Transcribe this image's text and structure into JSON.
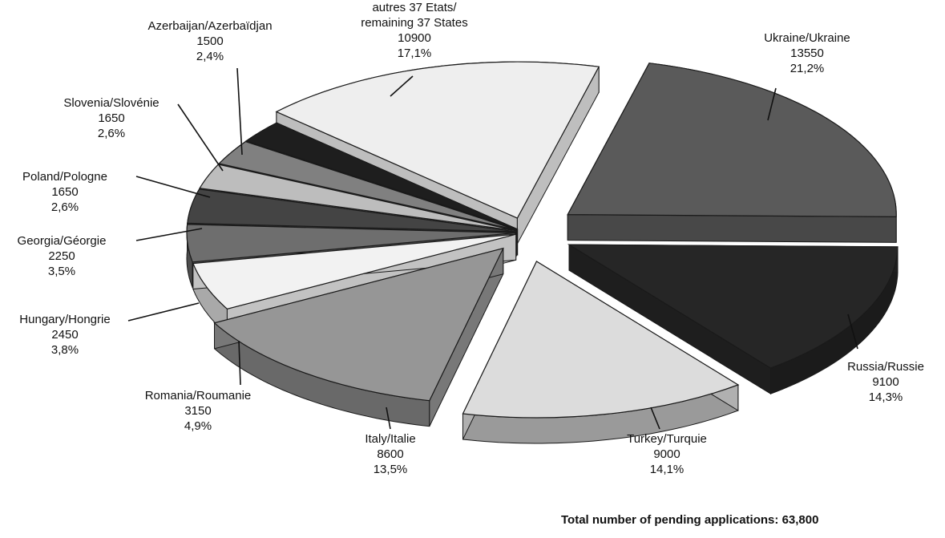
{
  "chart_data": {
    "type": "pie",
    "title": "",
    "legend": "none",
    "slices": [
      {
        "label": "Ukraine/Ukraine",
        "value": 13550,
        "percent": "21,2%",
        "color": "#5a5a5a"
      },
      {
        "label": "Russia/Russie",
        "value": 9100,
        "percent": "14,3%",
        "color": "#262626"
      },
      {
        "label": "Turkey/Turquie",
        "value": 9000,
        "percent": "14,1%",
        "color": "#dcdcdc"
      },
      {
        "label": "Italy/Italie",
        "value": 8600,
        "percent": "13,5%",
        "color": "#969696"
      },
      {
        "label": "Romania/Roumanie",
        "value": 3150,
        "percent": "4,9%",
        "color": "#f2f2f2"
      },
      {
        "label": "Hungary/Hongrie",
        "value": 2450,
        "percent": "3,8%",
        "color": "#6e6e6e"
      },
      {
        "label": "Georgia/Géorgie",
        "value": 2250,
        "percent": "3,5%",
        "color": "#444444"
      },
      {
        "label": "Poland/Pologne",
        "value": 1650,
        "percent": "2,6%",
        "color": "#bdbdbd"
      },
      {
        "label": "Slovenia/Slovénie",
        "value": 1650,
        "percent": "2,6%",
        "color": "#808080"
      },
      {
        "label": "Azerbaijan/Azerbaïdjan",
        "value": 1500,
        "percent": "2,4%",
        "color": "#1e1e1e"
      },
      {
        "label": "autres 37 Etats/\nremaining 37 States",
        "value": 10900,
        "percent": "17,1%",
        "color": "#eeeeee"
      }
    ],
    "total_label": "Total number of pending applications:",
    "total_value": "63,800"
  }
}
